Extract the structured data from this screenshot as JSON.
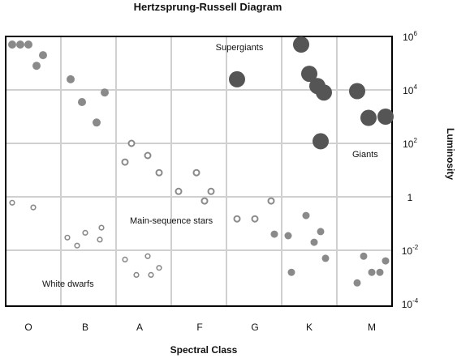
{
  "chart_data": {
    "type": "scatter",
    "title": "Hertzsprung-Russell Diagram",
    "xlabel": "Spectral Class",
    "ylabel": "Luminosity",
    "x_categories": [
      "O",
      "B",
      "A",
      "F",
      "G",
      "K",
      "M"
    ],
    "y_ticks": [
      {
        "value": 1000000,
        "base": "10",
        "exp": "6"
      },
      {
        "value": 10000,
        "base": "10",
        "exp": "4"
      },
      {
        "value": 100,
        "base": "10",
        "exp": "2"
      },
      {
        "value": 1,
        "base": "1",
        "exp": ""
      },
      {
        "value": 0.01,
        "base": "10",
        "exp": "-2"
      },
      {
        "value": 0.0001,
        "base": "10",
        "exp": "-4"
      }
    ],
    "y_scale": "log",
    "ylim": [
      0.0001,
      3000000
    ],
    "grid": true,
    "annotations": [
      {
        "text": "Supergiants",
        "near": "top-center"
      },
      {
        "text": "Giants",
        "near": "upper-right"
      },
      {
        "text": "Main-sequence stars",
        "near": "center"
      },
      {
        "text": "White dwarfs",
        "near": "lower-left"
      }
    ],
    "series": [
      {
        "style": "filled-medium",
        "color": "#8a8a8a",
        "points": [
          {
            "x": "O",
            "y": 2000000
          },
          {
            "x": "O",
            "y": 600000
          },
          {
            "x": "O",
            "y": 200000
          },
          {
            "x": "O",
            "y": 1400000
          },
          {
            "x": "O",
            "y": 80000
          },
          {
            "x": "B",
            "y": 25000
          },
          {
            "x": "B",
            "y": 8000
          },
          {
            "x": "B",
            "y": 3500
          },
          {
            "x": "B",
            "y": 600
          }
        ]
      },
      {
        "style": "ring",
        "color": "#8a8a8a",
        "points": [
          {
            "x": "A",
            "y": 100
          },
          {
            "x": "A",
            "y": 35
          },
          {
            "x": "A",
            "y": 20
          },
          {
            "x": "A",
            "y": 8
          },
          {
            "x": "F",
            "y": 8
          },
          {
            "x": "F",
            "y": 1.6
          },
          {
            "x": "F",
            "y": 1.6
          },
          {
            "x": "F",
            "y": 0.7
          },
          {
            "x": "G",
            "y": 0.7
          },
          {
            "x": "G",
            "y": 0.15
          },
          {
            "x": "G",
            "y": 0.15
          }
        ]
      },
      {
        "style": "filled-small",
        "color": "#8a8a8a",
        "points": [
          {
            "x": "G",
            "y": 0.04
          },
          {
            "x": "K",
            "y": 0.2
          },
          {
            "x": "K",
            "y": 0.05
          },
          {
            "x": "K",
            "y": 0.035
          },
          {
            "x": "K",
            "y": 0.02
          },
          {
            "x": "K",
            "y": 0.005
          },
          {
            "x": "K",
            "y": 0.0015
          },
          {
            "x": "M",
            "y": 0.0015
          },
          {
            "x": "M",
            "y": 0.004
          },
          {
            "x": "M",
            "y": 0.006
          },
          {
            "x": "M",
            "y": 0.0015
          },
          {
            "x": "M",
            "y": 0.0006
          }
        ]
      },
      {
        "style": "ring-small",
        "color": "#8a8a8a",
        "points": [
          {
            "x": "O",
            "y": 0.6
          },
          {
            "x": "O",
            "y": 0.4
          },
          {
            "x": "B",
            "y": 0.07
          },
          {
            "x": "B",
            "y": 0.03
          },
          {
            "x": "B",
            "y": 0.045
          },
          {
            "x": "B",
            "y": 0.025
          },
          {
            "x": "B",
            "y": 0.015
          },
          {
            "x": "A",
            "y": 0.006
          },
          {
            "x": "A",
            "y": 0.0045
          },
          {
            "x": "A",
            "y": 0.0022
          },
          {
            "x": "A",
            "y": 0.0012
          },
          {
            "x": "A",
            "y": 0.0012
          }
        ]
      },
      {
        "style": "filled-large",
        "color": "#555555",
        "points": [
          {
            "x": "G",
            "y": 25000
          },
          {
            "x": "K",
            "y": 40000
          },
          {
            "x": "K",
            "y": 8000
          },
          {
            "x": "K",
            "y": 900000
          },
          {
            "x": "K",
            "y": 14000
          },
          {
            "x": "M",
            "y": 9000
          },
          {
            "x": "M",
            "y": 1000
          },
          {
            "x": "M",
            "y": 900
          },
          {
            "x": "K",
            "y": 120
          }
        ]
      }
    ]
  }
}
